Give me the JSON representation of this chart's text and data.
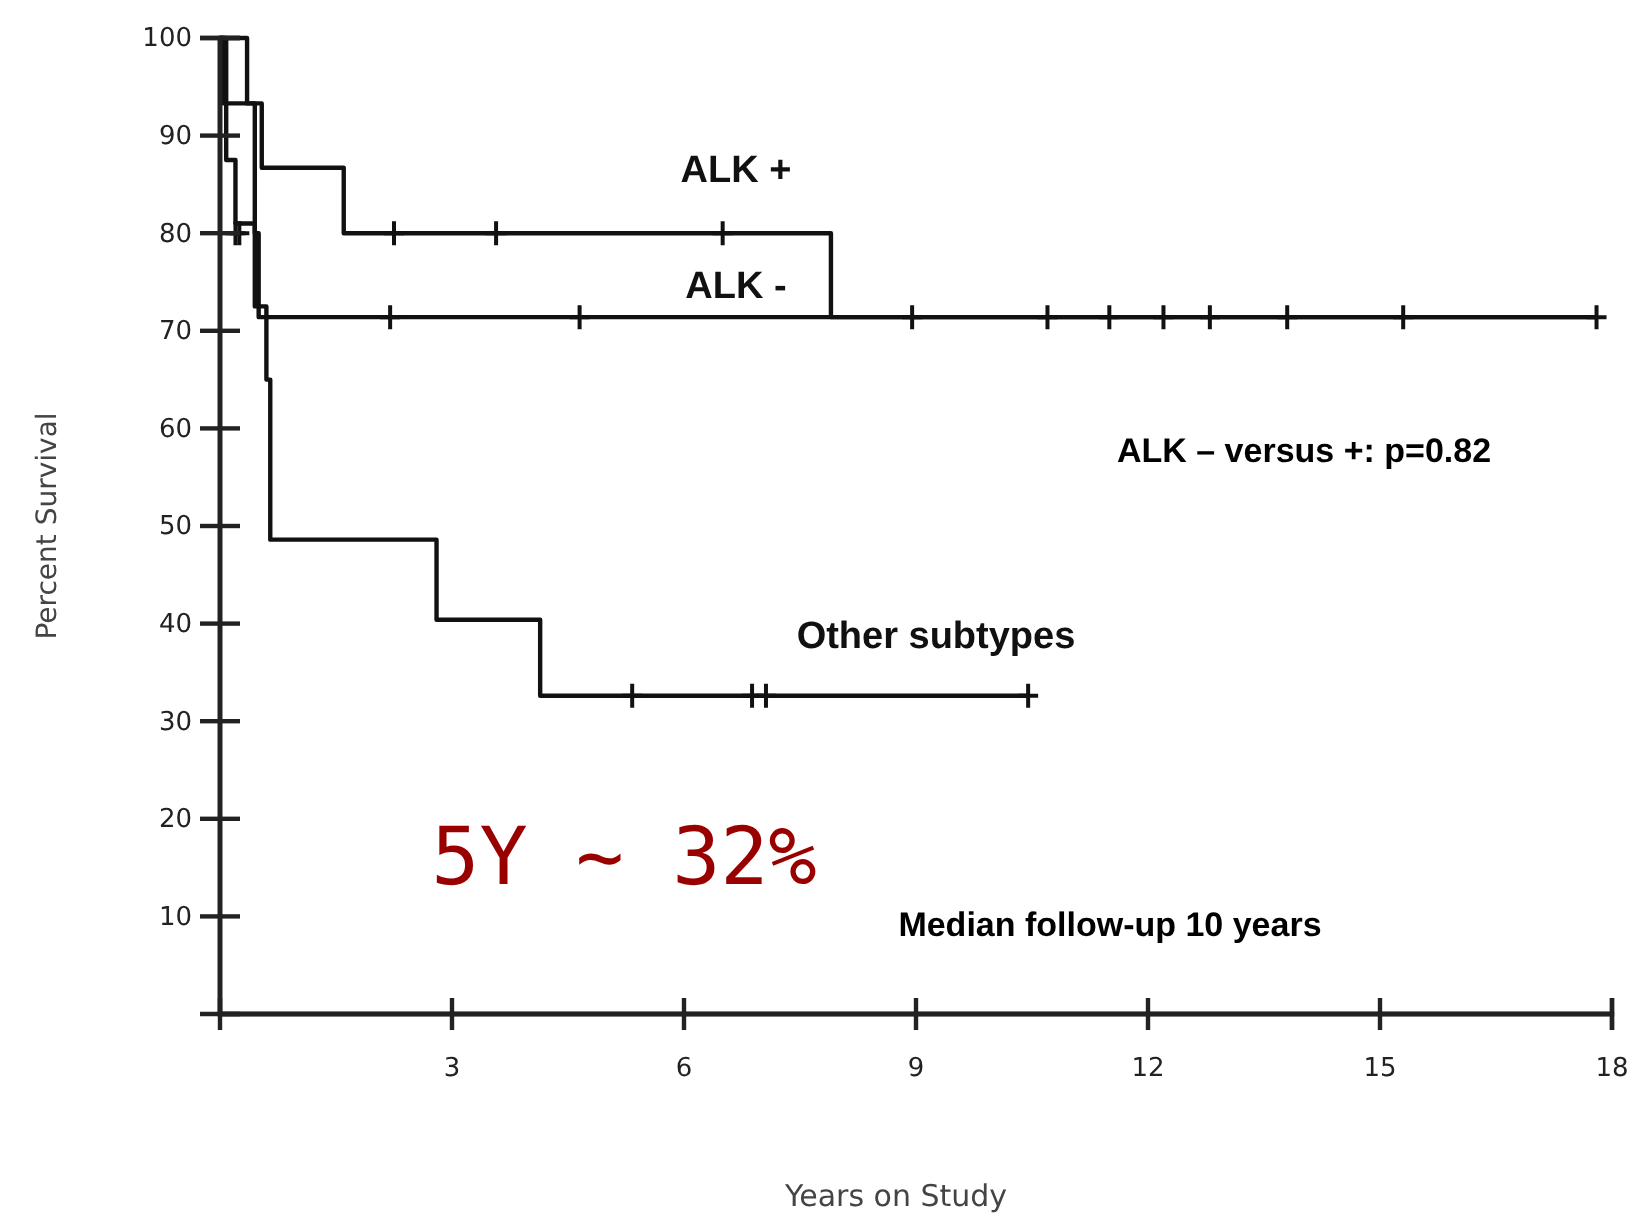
{
  "chart_data": {
    "type": "step",
    "xlabel": "Years on Study",
    "ylabel": "Percent Survival",
    "xlim": [
      0,
      18
    ],
    "xticks": [
      3,
      6,
      9,
      12,
      15,
      18
    ],
    "ylim": [
      0,
      100
    ],
    "yticks": [
      10,
      20,
      30,
      40,
      50,
      60,
      70,
      80,
      90,
      100
    ],
    "grid": false,
    "series": [
      {
        "name": "ALK +",
        "color": "#111111",
        "x": [
          0,
          0.35,
          0.54,
          1.6,
          7.9,
          17.8
        ],
        "values": [
          100,
          93.3,
          86.7,
          80,
          71.4,
          71.4
        ]
      },
      {
        "name": "ALK -",
        "color": "#111111",
        "x": [
          0,
          0.05,
          0.45,
          0.5,
          17.8
        ],
        "values": [
          100,
          93.3,
          80,
          71.4,
          71.4
        ]
      },
      {
        "name": "Other subtypes",
        "color": "#111111",
        "x": [
          0,
          0.08,
          0.2,
          0.45,
          0.6,
          0.65,
          2.8,
          4.14,
          10.45
        ],
        "values": [
          100,
          87.5,
          81,
          72.5,
          65,
          48.6,
          40.4,
          32.6,
          32.6
        ]
      },
      {
        "type": "scatter",
        "color": "#111111",
        "x": [
          2.25,
          3.57,
          6.5,
          8.95,
          11.5,
          12.8,
          15.3,
          17.8
        ],
        "values": [
          80,
          80,
          80,
          71.4,
          71.4,
          71.4,
          71.4,
          71.4
        ]
      },
      {
        "type": "scatter",
        "color": "#111111",
        "x": [
          0.2,
          0.25,
          2.2,
          4.65,
          10.7,
          12.2,
          13.8
        ],
        "values": [
          80,
          80,
          71.4,
          71.4,
          71.4,
          71.4,
          71.4
        ]
      },
      {
        "type": "scatter",
        "color": "#111111",
        "x": [
          5.33,
          6.88,
          7.06,
          10.45
        ],
        "values": [
          32.6,
          32.6,
          32.6,
          32.6
        ]
      }
    ],
    "annotations": [
      "ALK – versus +: p=0.82",
      "5Y ~ 32%",
      "Median follow-up 10 years"
    ]
  }
}
